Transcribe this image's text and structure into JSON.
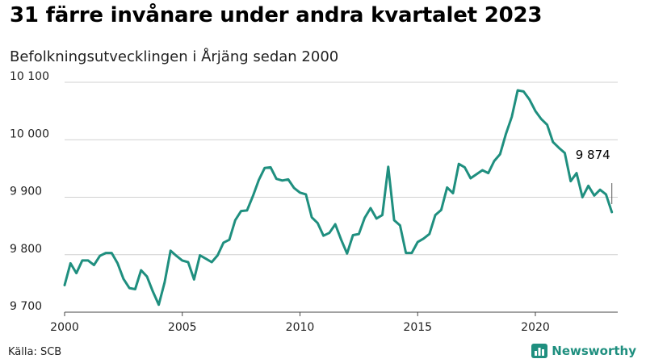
{
  "header": {
    "title": "31 färre invånare under andra kvartalet 2023",
    "subtitle": "Befolkningsutvecklingen i Årjäng sedan 2000"
  },
  "footer": {
    "source": "Källa: SCB",
    "brand": "Newsworthy",
    "brand_icon": "bar-chart-logo-icon",
    "brand_color": "#1f8f7f"
  },
  "chart_data": {
    "type": "line",
    "title": "31 färre invånare under andra kvartalet 2023",
    "subtitle": "Befolkningsutvecklingen i Årjäng sedan 2000",
    "xlabel": "",
    "ylabel": "",
    "x_ticks": [
      2000,
      2005,
      2010,
      2015,
      2020
    ],
    "y_ticks": [
      9700,
      9800,
      9900,
      10000,
      10100
    ],
    "y_tick_labels": [
      "9 700",
      "9 800",
      "9 900",
      "10 000",
      "10 100"
    ],
    "ylim": [
      9700,
      10100
    ],
    "xlim": [
      2000,
      2023.5
    ],
    "grid": "horizontal",
    "line_color": "#1f8f7f",
    "end_label": "9 874",
    "series": [
      {
        "x": [
          2000.0,
          2000.25,
          2000.5,
          2000.75,
          2001.0,
          2001.25,
          2001.5,
          2001.75,
          2002.0,
          2002.25,
          2002.5,
          2002.75,
          2003.0,
          2003.25,
          2003.5,
          2003.75,
          2004.0,
          2004.25,
          2004.5,
          2004.75,
          2005.0,
          2005.25,
          2005.5,
          2005.75,
          2006.0,
          2006.25,
          2006.5,
          2006.75,
          2007.0,
          2007.25,
          2007.5,
          2007.75,
          2008.0,
          2008.25,
          2008.5,
          2008.75,
          2009.0,
          2009.25,
          2009.5,
          2009.75,
          2010.0,
          2010.25,
          2010.5,
          2010.75,
          2011.0,
          2011.25,
          2011.5,
          2011.75,
          2012.0,
          2012.25,
          2012.5,
          2012.75,
          2013.0,
          2013.25,
          2013.5,
          2013.75,
          2014.0,
          2014.25,
          2014.5,
          2014.75,
          2015.0,
          2015.25,
          2015.5,
          2015.75,
          2016.0,
          2016.25,
          2016.5,
          2016.75,
          2017.0,
          2017.25,
          2017.5,
          2017.75,
          2018.0,
          2018.25,
          2018.5,
          2018.75,
          2019.0,
          2019.25,
          2019.5,
          2019.75,
          2020.0,
          2020.25,
          2020.5,
          2020.75,
          2021.0,
          2021.25,
          2021.5,
          2021.75,
          2022.0,
          2022.25,
          2022.5,
          2022.75,
          2023.0,
          2023.25
        ],
        "y": [
          9747,
          9785,
          9768,
          9790,
          9790,
          9782,
          9798,
          9803,
          9803,
          9785,
          9758,
          9742,
          9740,
          9773,
          9762,
          9736,
          9713,
          9752,
          9807,
          9798,
          9790,
          9787,
          9757,
          9799,
          9793,
          9787,
          9799,
          9821,
          9826,
          9860,
          9876,
          9877,
          9902,
          9930,
          9951,
          9952,
          9932,
          9929,
          9931,
          9916,
          9908,
          9905,
          9865,
          9855,
          9833,
          9838,
          9853,
          9826,
          9802,
          9834,
          9836,
          9864,
          9881,
          9863,
          9869,
          9953,
          9860,
          9851,
          9803,
          9803,
          9822,
          9828,
          9836,
          9869,
          9878,
          9917,
          9907,
          9958,
          9952,
          9933,
          9940,
          9947,
          9942,
          9963,
          9975,
          10010,
          10040,
          10086,
          10084,
          10070,
          10050,
          10036,
          10026,
          9996,
          9986,
          9977,
          9928,
          9942,
          9900,
          9920,
          9903,
          9913,
          9905,
          9874
        ]
      }
    ]
  }
}
